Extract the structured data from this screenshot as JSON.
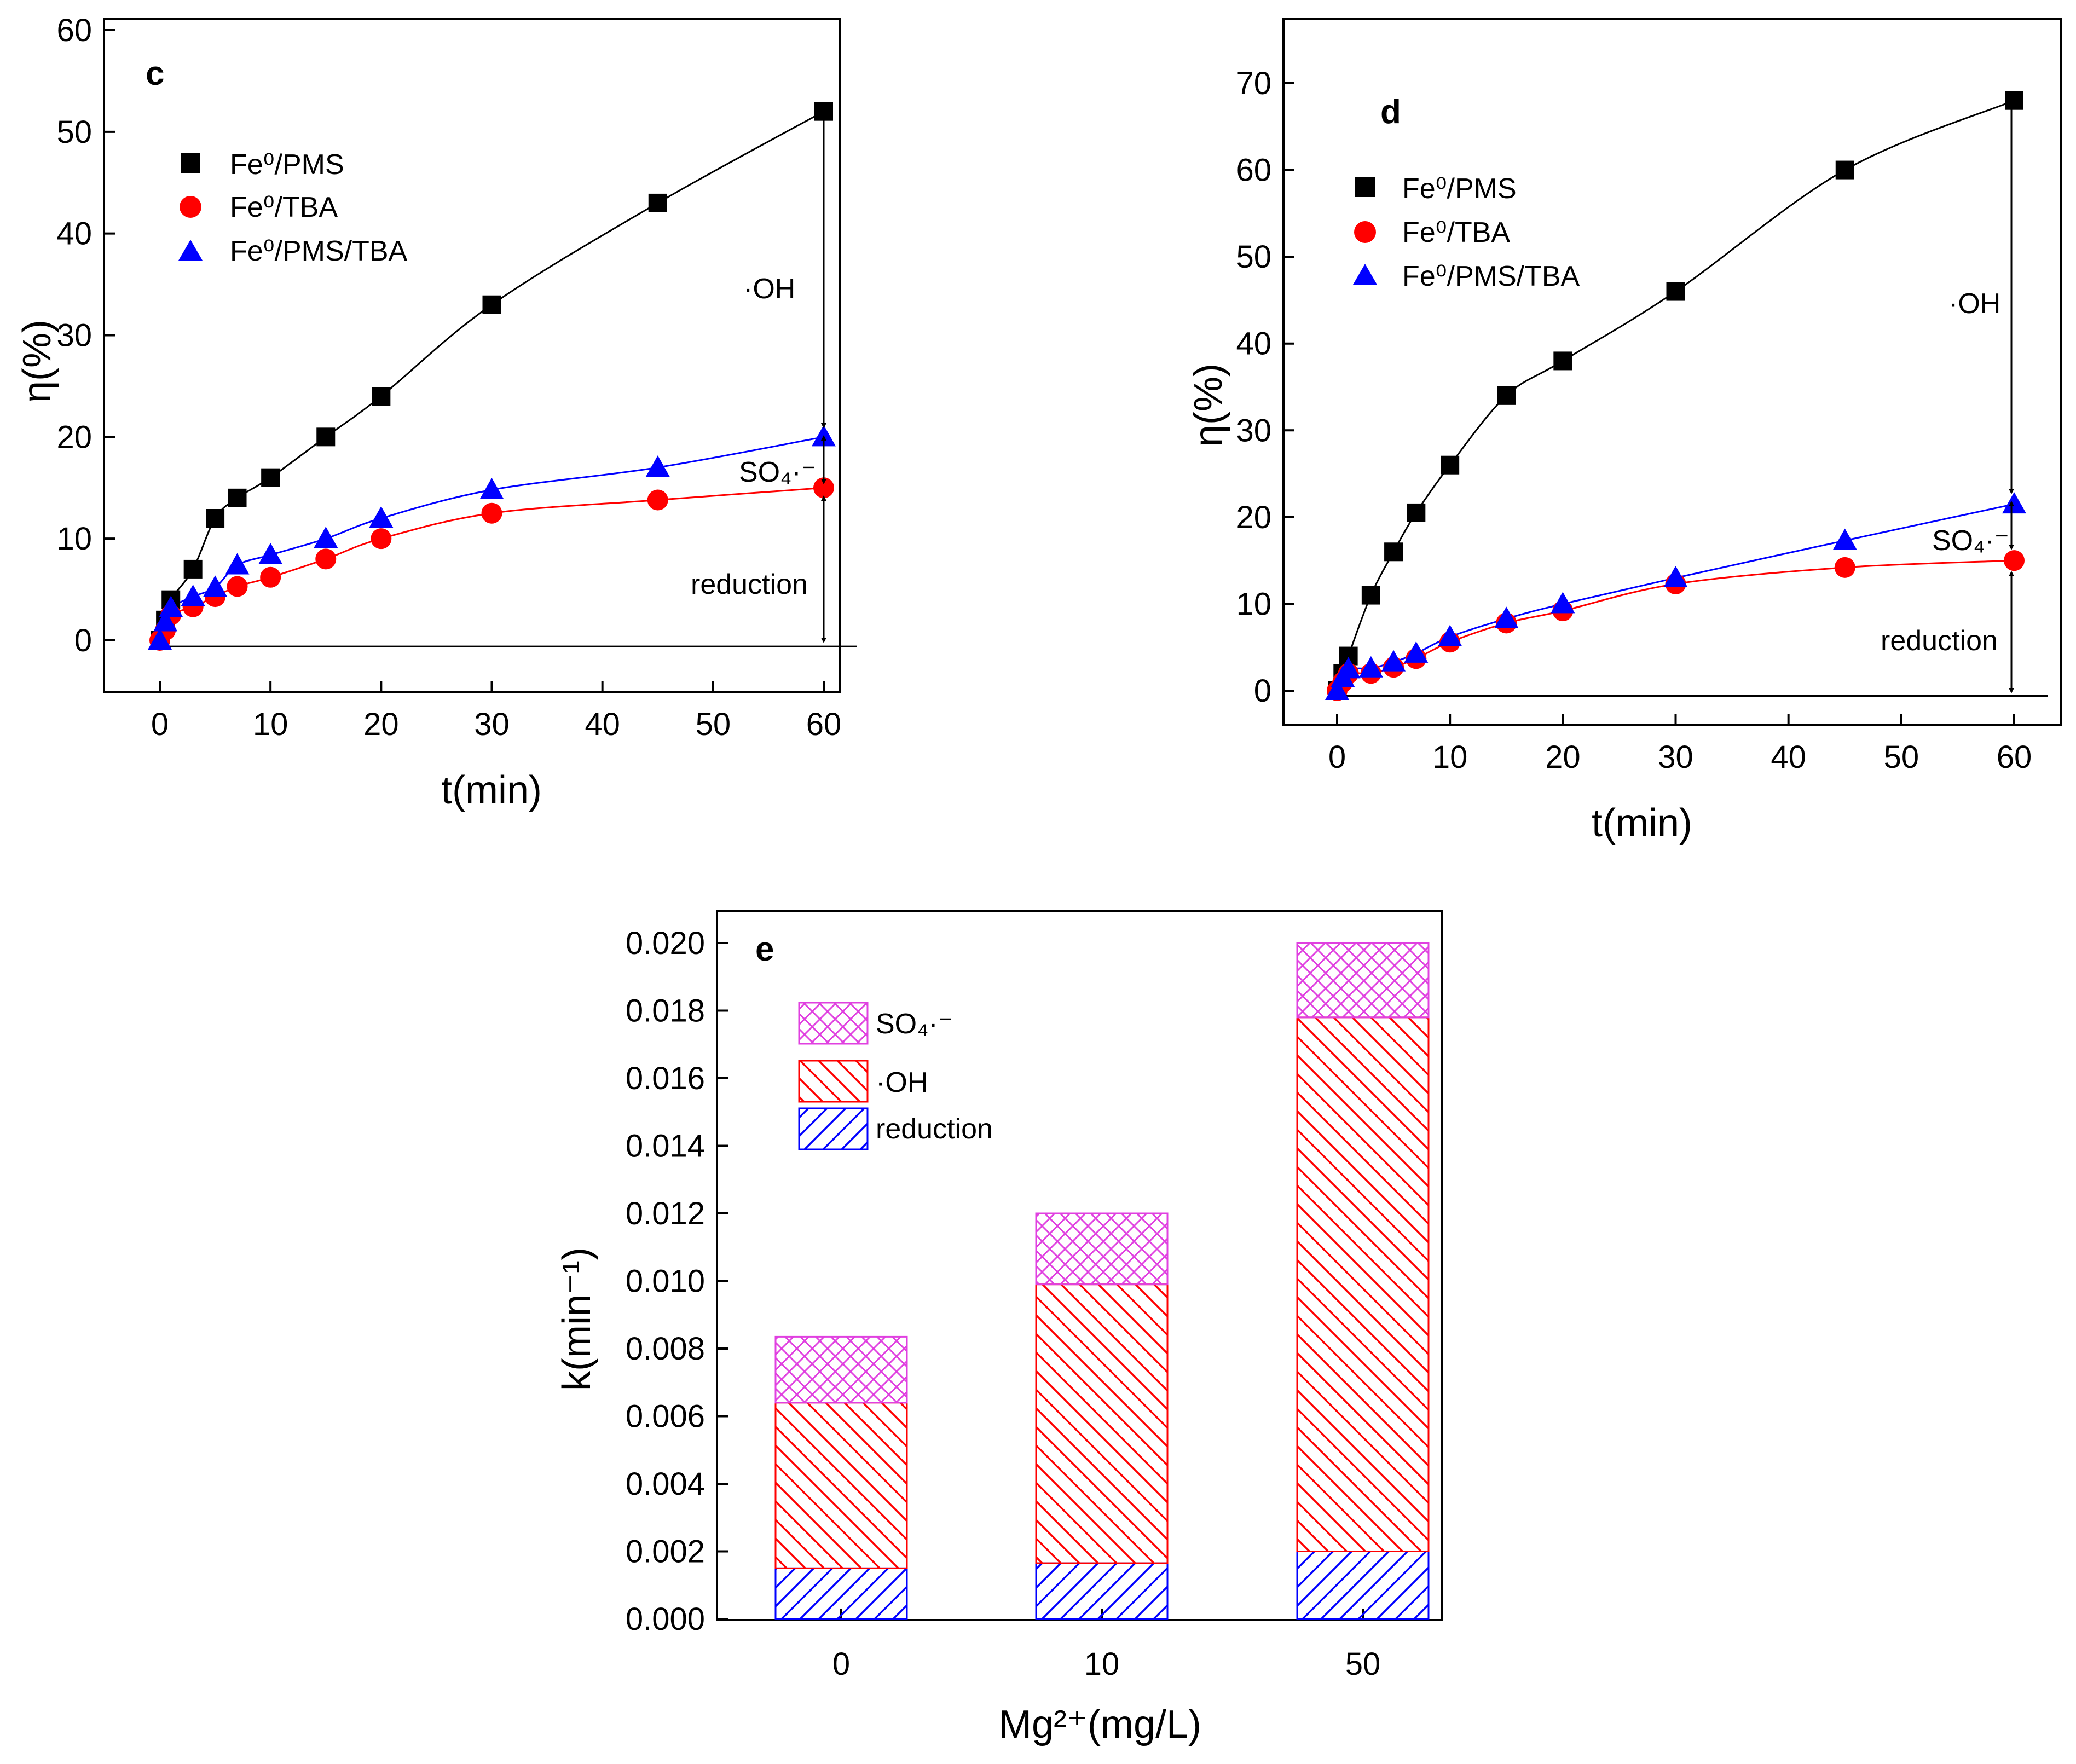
{
  "colors": {
    "black": "#000000",
    "red": "#ff0000",
    "blue": "#0000ff",
    "magenta": "#e040e0"
  },
  "chart_data": [
    {
      "type": "scatter",
      "panel": "c",
      "xlabel": "t(min)",
      "ylabel": "η(%)",
      "xlim": [
        -5,
        62
      ],
      "ylim": [
        -5,
        60
      ],
      "xticks": [
        0,
        10,
        20,
        30,
        40,
        50,
        60
      ],
      "yticks": [
        0,
        10,
        20,
        30,
        40,
        50,
        60
      ],
      "series": [
        {
          "name": "Fe⁰/PMS",
          "color": "#000000",
          "marker": "square",
          "x": [
            0,
            0.5,
            1,
            3,
            5,
            7,
            10,
            15,
            20,
            30,
            45,
            60
          ],
          "y": [
            0,
            2,
            4,
            7,
            12,
            14,
            16,
            20,
            24,
            33,
            43,
            52
          ]
        },
        {
          "name": "Fe⁰/TBA",
          "color": "#ff0000",
          "marker": "circle",
          "x": [
            0,
            0.5,
            1,
            3,
            5,
            7,
            10,
            15,
            20,
            30,
            45,
            60
          ],
          "y": [
            0,
            1,
            2.5,
            3.3,
            4.3,
            5.3,
            6.2,
            8,
            10,
            12.5,
            13.8,
            15
          ]
        },
        {
          "name": "Fe⁰/PMS/TBA",
          "color": "#0000ff",
          "marker": "triangle",
          "x": [
            0,
            0.5,
            1,
            3,
            5,
            7,
            10,
            15,
            20,
            30,
            45,
            60
          ],
          "y": [
            0,
            1.8,
            3.2,
            4.3,
            5.2,
            7.4,
            8.4,
            10,
            12,
            14.8,
            17,
            20
          ]
        }
      ],
      "annotations": [
        {
          "text": "·OH"
        },
        {
          "text": "SO₄·⁻"
        },
        {
          "text": "reduction"
        }
      ]
    },
    {
      "type": "scatter",
      "panel": "d",
      "xlabel": "t(min)",
      "ylabel": "η(%)",
      "xlim": [
        -4,
        62
      ],
      "ylim": [
        -4,
        74
      ],
      "xticks": [
        0,
        10,
        20,
        30,
        40,
        50,
        60
      ],
      "yticks": [
        0,
        10,
        20,
        30,
        40,
        50,
        60,
        70
      ],
      "series": [
        {
          "name": "Fe⁰/PMS",
          "color": "#000000",
          "marker": "square",
          "x": [
            0,
            0.5,
            1,
            3,
            5,
            7,
            10,
            15,
            20,
            30,
            45,
            60
          ],
          "y": [
            0,
            2,
            4,
            11,
            16,
            20.5,
            26,
            34,
            38,
            46,
            60,
            68
          ]
        },
        {
          "name": "Fe⁰/TBA",
          "color": "#ff0000",
          "marker": "circle",
          "x": [
            0,
            0.5,
            1,
            3,
            5,
            7,
            10,
            15,
            20,
            30,
            45,
            60
          ],
          "y": [
            0,
            1,
            2,
            2,
            2.7,
            3.7,
            5.6,
            7.8,
            9.2,
            12.3,
            14.2,
            15
          ]
        },
        {
          "name": "Fe⁰/PMS/TBA",
          "color": "#0000ff",
          "marker": "triangle",
          "x": [
            0,
            0.5,
            1,
            3,
            5,
            7,
            10,
            15,
            20,
            30,
            45,
            60
          ],
          "y": [
            0,
            1.5,
            2.5,
            2.6,
            3.3,
            4.3,
            6.2,
            8.3,
            10,
            13,
            17.3,
            21.5
          ]
        }
      ],
      "annotations": [
        {
          "text": "·OH"
        },
        {
          "text": "SO₄·⁻"
        },
        {
          "text": "reduction"
        }
      ]
    },
    {
      "type": "bar",
      "panel": "e",
      "stacked": true,
      "xlabel": "Mg²⁺(mg/L)",
      "ylabel": "k(min⁻¹)",
      "categories": [
        "0",
        "10",
        "50"
      ],
      "ylim": [
        0,
        0.0212
      ],
      "yticks": [
        "0.000",
        "0.002",
        "0.004",
        "0.006",
        "0.008",
        "0.010",
        "0.012",
        "0.014",
        "0.016",
        "0.018",
        "0.020"
      ],
      "series": [
        {
          "name": "reduction",
          "color": "#0000ff",
          "pattern": "hatch-forward",
          "values": [
            0.0015,
            0.00165,
            0.002
          ]
        },
        {
          "name": "·OH",
          "color": "#ff0000",
          "pattern": "hatch-back",
          "values": [
            0.0049,
            0.00825,
            0.0158
          ]
        },
        {
          "name": "SO₄·⁻",
          "color": "#e040e0",
          "pattern": "crosshatch",
          "values": [
            0.00195,
            0.0021,
            0.0022
          ]
        }
      ]
    }
  ]
}
